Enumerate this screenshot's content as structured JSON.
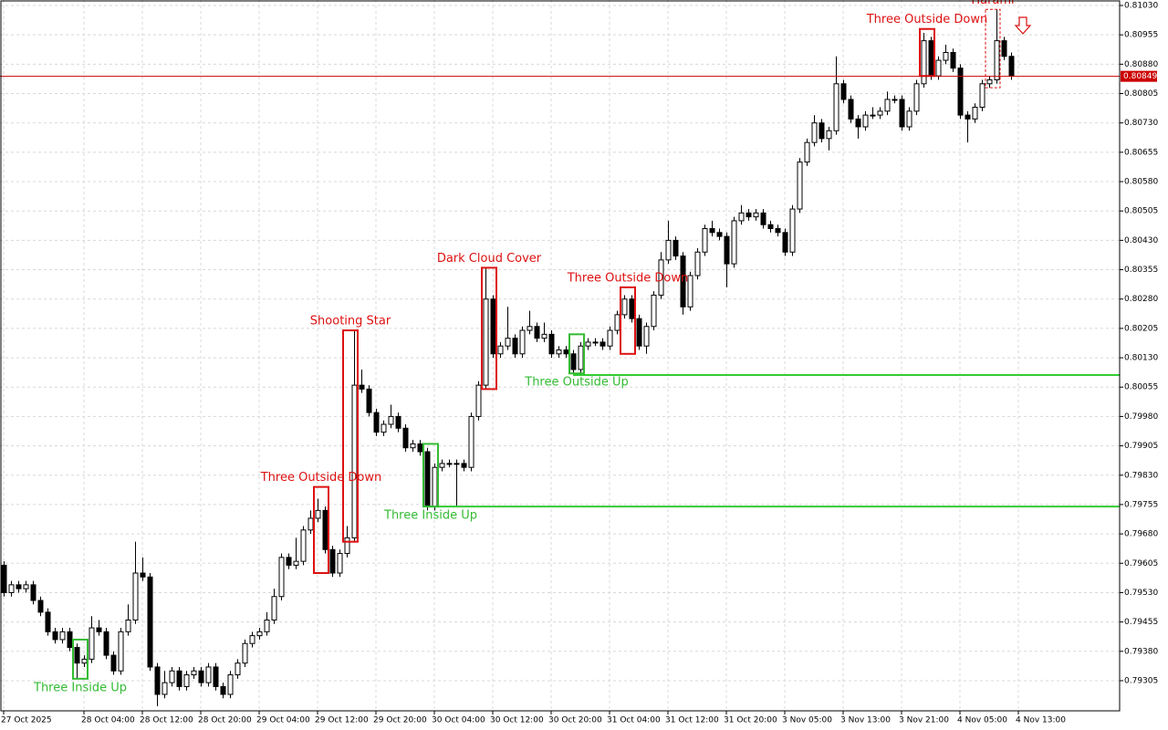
{
  "chart_data": {
    "type": "candlestick",
    "up_color": "#ffffff",
    "down_color": "#000000",
    "edge_color": "#000000",
    "grid": true,
    "ylim": [
      0.79228,
      0.81044
    ],
    "yticks": [
      0.79305,
      {
        "value": 0.7938,
        "label": "0.79380"
      },
      0.79455,
      {
        "value": 0.7953,
        "label": "0.79530"
      },
      0.79605,
      {
        "value": 0.7968,
        "label": "0.79680"
      },
      0.79755,
      {
        "value": 0.7983,
        "label": "0.79830"
      },
      0.79905,
      {
        "value": 0.7998,
        "label": "0.79980"
      },
      0.80055,
      {
        "value": 0.8013,
        "label": "0.80130"
      },
      0.80205,
      {
        "value": 0.8028,
        "label": "0.80280"
      },
      0.80355,
      {
        "value": 0.8043,
        "label": "0.80430"
      },
      0.80505,
      {
        "value": 0.8058,
        "label": "0.80580"
      },
      0.80655,
      {
        "value": 0.8073,
        "label": "0.80730"
      },
      0.80805,
      {
        "value": 0.8088,
        "label": "0.80880"
      },
      0.80955,
      {
        "value": 0.8103,
        "label": "0.81030"
      }
    ],
    "xlim": [
      -0.5,
      152.875
    ],
    "xticks": [
      {
        "value": 0,
        "label": "27 Oct 2025"
      },
      {
        "value": 11,
        "label": "28 Oct 04:00"
      },
      {
        "value": 19,
        "label": "28 Oct 12:00"
      },
      {
        "value": 27,
        "label": "28 Oct 20:00"
      },
      {
        "value": 35,
        "label": "29 Oct 04:00"
      },
      {
        "value": 43,
        "label": "29 Oct 12:00"
      },
      {
        "value": 51,
        "label": "29 Oct 20:00"
      },
      {
        "value": 59,
        "label": "30 Oct 04:00"
      },
      {
        "value": 67,
        "label": "30 Oct 12:00"
      },
      {
        "value": 75,
        "label": "30 Oct 20:00"
      },
      {
        "value": 83,
        "label": "31 Oct 04:00"
      },
      {
        "value": 91,
        "label": "31 Oct 12:00"
      },
      {
        "value": 99,
        "label": "31 Oct 20:00"
      },
      {
        "value": 107,
        "label": "3 Nov 05:00"
      },
      {
        "value": 115,
        "label": "3 Nov 13:00"
      },
      {
        "value": 123,
        "label": "3 Nov 21:00"
      },
      {
        "value": 131,
        "label": "4 Nov 05:00"
      },
      {
        "value": 139,
        "label": "4 Nov 13:00"
      }
    ],
    "open": [
      0.796,
      0.7953,
      0.7955,
      0.7954,
      0.7955,
      0.7951,
      0.7948,
      0.7943,
      0.7941,
      0.7943,
      0.7939,
      0.7935,
      0.7936,
      0.7944,
      0.7943,
      0.7937,
      0.7933,
      0.7943,
      0.7946,
      0.7958,
      0.7957,
      0.7934,
      0.7927,
      0.793,
      0.7933,
      0.7929,
      0.7932,
      0.7933,
      0.793,
      0.7934,
      0.7929,
      0.7927,
      0.7932,
      0.7935,
      0.794,
      0.7942,
      0.7943,
      0.7946,
      0.7952,
      0.7962,
      0.796,
      0.7961,
      0.7969,
      0.7972,
      0.7974,
      0.7964,
      0.7958,
      0.7963,
      0.7967,
      0.8006,
      0.8005,
      0.7999,
      0.7994,
      0.7996,
      0.7998,
      0.7995,
      0.799,
      0.7991,
      0.7989,
      0.7975,
      0.7985,
      0.7986,
      0.7986,
      0.7986,
      0.7985,
      0.7998,
      0.8006,
      0.8028,
      0.8014,
      0.8016,
      0.8018,
      0.8014,
      0.802,
      0.8021,
      0.8018,
      0.8019,
      0.8014,
      0.8015,
      0.8014,
      0.801,
      0.8016,
      0.8017,
      0.8017,
      0.8016,
      0.802,
      0.8024,
      0.8028,
      0.8023,
      0.8016,
      0.8021,
      0.8029,
      0.8038,
      0.8043,
      0.8039,
      0.8026,
      0.8034,
      0.804,
      0.8046,
      0.8045,
      0.8044,
      0.8037,
      0.8048,
      0.805,
      0.8049,
      0.805,
      0.8047,
      0.8046,
      0.8045,
      0.804,
      0.8051,
      0.8063,
      0.8068,
      0.8073,
      0.8069,
      0.8071,
      0.8083,
      0.8079,
      0.8074,
      0.8072,
      0.8075,
      0.8075,
      0.8076,
      0.8079,
      0.8079,
      0.8072,
      0.8076,
      0.8083,
      0.8094,
      0.8085,
      0.8089,
      0.8091,
      0.8087,
      0.8075,
      0.8074,
      0.8077,
      0.8083,
      0.8084,
      0.8094,
      0.809
    ],
    "high": [
      0.7961,
      0.7956,
      0.7956,
      0.7956,
      0.7956,
      0.7952,
      0.7949,
      0.7944,
      0.7944,
      0.7944,
      0.794,
      0.7937,
      0.7947,
      0.7946,
      0.7944,
      0.7938,
      0.7944,
      0.795,
      0.7966,
      0.7962,
      0.7958,
      0.7935,
      0.7933,
      0.7934,
      0.7934,
      0.7933,
      0.7934,
      0.7934,
      0.7935,
      0.7935,
      0.793,
      0.7933,
      0.7936,
      0.7941,
      0.7943,
      0.7944,
      0.7948,
      0.7954,
      0.7963,
      0.7963,
      0.7967,
      0.797,
      0.7974,
      0.7977,
      0.7975,
      0.7965,
      0.7964,
      0.797,
      0.802,
      0.801,
      0.8006,
      0.8,
      0.7997,
      0.8001,
      0.7999,
      0.7996,
      0.7992,
      0.7992,
      0.799,
      0.7986,
      0.7987,
      0.7987,
      0.7987,
      0.7987,
      0.7999,
      0.8007,
      0.8036,
      0.8029,
      0.8017,
      0.8026,
      0.8019,
      0.8021,
      0.8025,
      0.8022,
      0.8022,
      0.802,
      0.8016,
      0.8016,
      0.8015,
      0.8017,
      0.8018,
      0.8018,
      0.8018,
      0.8021,
      0.8025,
      0.8029,
      0.8029,
      0.8024,
      0.8022,
      0.803,
      0.804,
      0.8048,
      0.8044,
      0.804,
      0.8035,
      0.8041,
      0.8047,
      0.8048,
      0.8046,
      0.8045,
      0.8049,
      0.8052,
      0.8051,
      0.8051,
      0.8051,
      0.8048,
      0.8047,
      0.8046,
      0.8052,
      0.8064,
      0.8069,
      0.8075,
      0.8074,
      0.8072,
      0.809,
      0.8084,
      0.808,
      0.8075,
      0.8076,
      0.8077,
      0.8077,
      0.8081,
      0.808,
      0.808,
      0.8077,
      0.8084,
      0.8096,
      0.8095,
      0.809,
      0.8093,
      0.8092,
      0.8088,
      0.8076,
      0.8078,
      0.8084,
      0.8085,
      0.8102,
      0.8095,
      0.8091
    ],
    "low": [
      0.7952,
      0.7952,
      0.7953,
      0.7953,
      0.795,
      0.7947,
      0.7942,
      0.794,
      0.794,
      0.7938,
      0.7931,
      0.7934,
      0.7935,
      0.7942,
      0.7936,
      0.7932,
      0.7932,
      0.7942,
      0.7945,
      0.7956,
      0.7933,
      0.7924,
      0.7926,
      0.7929,
      0.7928,
      0.7928,
      0.7931,
      0.7929,
      0.7929,
      0.7928,
      0.7926,
      0.7926,
      0.7931,
      0.7934,
      0.7939,
      0.7941,
      0.7942,
      0.7945,
      0.7951,
      0.7959,
      0.7959,
      0.796,
      0.7968,
      0.7971,
      0.7963,
      0.7957,
      0.7957,
      0.7962,
      0.7966,
      0.8004,
      0.7998,
      0.7993,
      0.7993,
      0.7995,
      0.7994,
      0.7989,
      0.7989,
      0.7988,
      0.7974,
      0.7974,
      0.7984,
      0.7985,
      0.7975,
      0.7984,
      0.7984,
      0.7997,
      0.8005,
      0.8013,
      0.8013,
      0.8015,
      0.8013,
      0.8013,
      0.8019,
      0.8017,
      0.8017,
      0.8013,
      0.8013,
      0.8013,
      0.8009,
      0.8009,
      0.8015,
      0.8016,
      0.8015,
      0.8015,
      0.8019,
      0.8023,
      0.8022,
      0.8015,
      0.8014,
      0.802,
      0.8028,
      0.8037,
      0.8038,
      0.8024,
      0.8025,
      0.8033,
      0.8039,
      0.8044,
      0.8043,
      0.8031,
      0.8036,
      0.8047,
      0.8048,
      0.8048,
      0.8046,
      0.8045,
      0.8044,
      0.8039,
      0.8039,
      0.805,
      0.8062,
      0.8067,
      0.8068,
      0.8066,
      0.807,
      0.8078,
      0.8073,
      0.8069,
      0.8071,
      0.8074,
      0.8074,
      0.8075,
      0.8078,
      0.8071,
      0.8071,
      0.8075,
      0.8082,
      0.8084,
      0.8084,
      0.8088,
      0.8086,
      0.8074,
      0.8068,
      0.8073,
      0.8076,
      0.8082,
      0.8083,
      0.8089,
      0.8084
    ],
    "close": [
      0.7953,
      0.7955,
      0.7954,
      0.7955,
      0.7951,
      0.7948,
      0.7943,
      0.7941,
      0.7943,
      0.7939,
      0.7935,
      0.7936,
      0.7944,
      0.7943,
      0.7937,
      0.7933,
      0.7943,
      0.7946,
      0.7958,
      0.7957,
      0.7934,
      0.7927,
      0.793,
      0.7933,
      0.7929,
      0.7932,
      0.7933,
      0.793,
      0.7934,
      0.7929,
      0.7927,
      0.7932,
      0.7935,
      0.794,
      0.7942,
      0.7943,
      0.7946,
      0.7952,
      0.7962,
      0.796,
      0.7961,
      0.7969,
      0.7972,
      0.7974,
      0.7964,
      0.7958,
      0.7963,
      0.7967,
      0.8006,
      0.8005,
      0.7999,
      0.7994,
      0.7996,
      0.7998,
      0.7995,
      0.799,
      0.7991,
      0.7989,
      0.7975,
      0.7985,
      0.7986,
      0.7986,
      0.7986,
      0.7985,
      0.7998,
      0.8006,
      0.8028,
      0.8014,
      0.8016,
      0.8018,
      0.8014,
      0.802,
      0.8021,
      0.8018,
      0.8019,
      0.8014,
      0.8015,
      0.8014,
      0.801,
      0.8016,
      0.8017,
      0.8017,
      0.8016,
      0.802,
      0.8024,
      0.8028,
      0.8023,
      0.8016,
      0.8021,
      0.8029,
      0.8038,
      0.8043,
      0.8039,
      0.8026,
      0.8034,
      0.804,
      0.8046,
      0.8045,
      0.8044,
      0.8037,
      0.8048,
      0.805,
      0.8049,
      0.805,
      0.8047,
      0.8046,
      0.8045,
      0.804,
      0.8051,
      0.8063,
      0.8068,
      0.8073,
      0.8069,
      0.8071,
      0.8083,
      0.8079,
      0.8074,
      0.8072,
      0.8075,
      0.8075,
      0.8076,
      0.8079,
      0.8079,
      0.8072,
      0.8076,
      0.8083,
      0.8094,
      0.8085,
      0.8089,
      0.8091,
      0.8087,
      0.8075,
      0.8074,
      0.8077,
      0.8083,
      0.8084,
      0.8094,
      0.809,
      0.8085
    ],
    "patterns": [
      {
        "name": "Three Inside Up",
        "color": "#33bb33",
        "start": 10,
        "end": 11,
        "low": 0.7931,
        "high": 0.7941
      },
      {
        "name": "Three Outside Down",
        "color": "#dd1111",
        "start": 43,
        "end": 44,
        "low": 0.7958,
        "high": 0.798
      },
      {
        "name": "Shooting Star",
        "color": "#dd1111",
        "start": 47,
        "end": 48,
        "low": 0.7966,
        "high": 0.802
      },
      {
        "name": "Three Inside Up",
        "color": "#33bb33",
        "start": 58,
        "end": 59,
        "low": 0.7975,
        "high": 0.7991
      },
      {
        "name": "Dark Cloud Cover",
        "color": "#dd1111",
        "start": 66,
        "end": 67,
        "low": 0.8005,
        "high": 0.8036
      },
      {
        "name": "Three Outside Up",
        "color": "#33bb33",
        "start": 78,
        "end": 79,
        "low": 0.8009,
        "high": 0.8019
      },
      {
        "name": "Three Outside Down",
        "color": "#dd1111",
        "start": 85,
        "end": 86,
        "low": 0.8014,
        "high": 0.8031
      },
      {
        "name": "Three Outside Down",
        "color": "#dd1111",
        "start": 126,
        "end": 127,
        "low": 0.8085,
        "high": 0.8097
      },
      {
        "name": "Harami",
        "color": "#dd1111",
        "start": 135,
        "end": 136,
        "low": 0.8082,
        "high": 0.8102,
        "style": "dashed"
      }
    ],
    "levels": [
      {
        "value": 0.7975,
        "start": 58,
        "color": "#33cc33"
      },
      {
        "value": 0.80086,
        "start": 78,
        "color": "#33cc33"
      }
    ],
    "current_price": {
      "value": 0.80849,
      "color": "#cc0000"
    }
  }
}
